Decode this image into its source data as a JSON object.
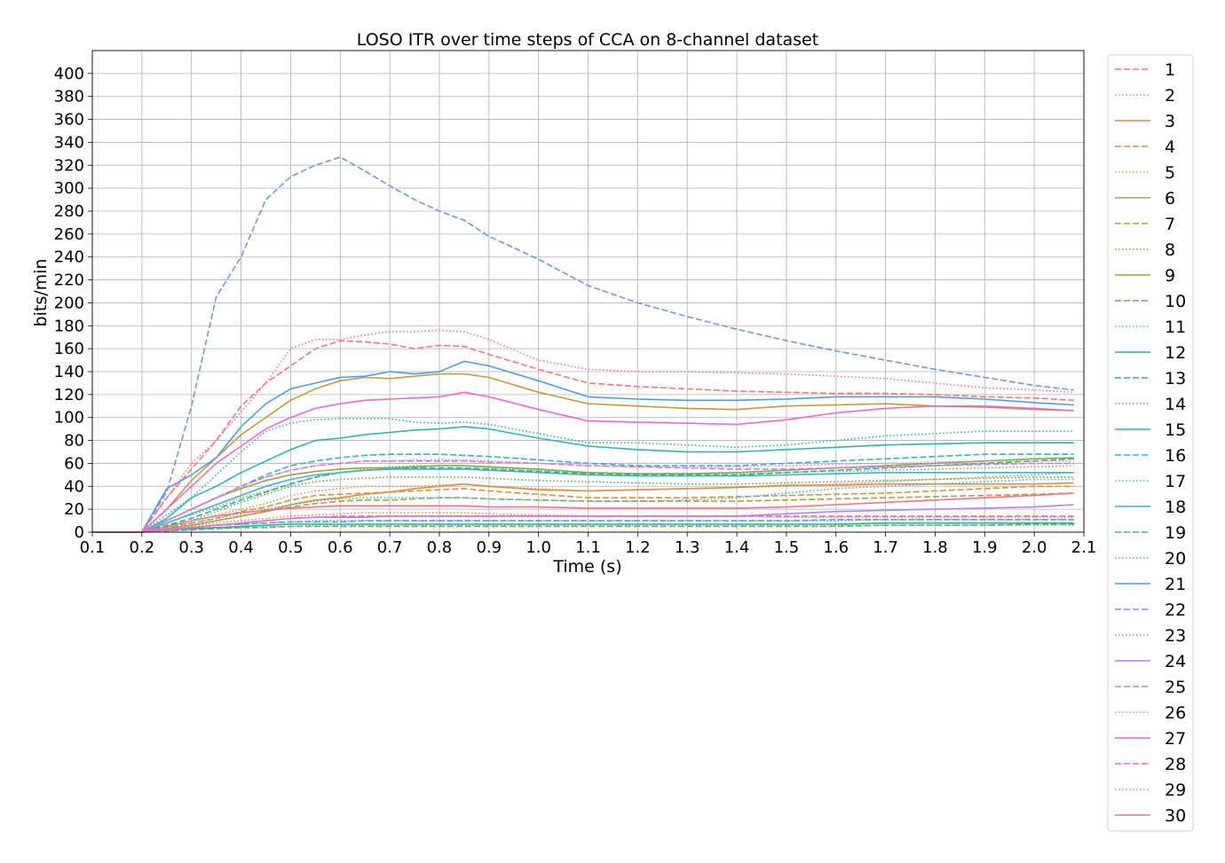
{
  "chart_data": {
    "type": "line",
    "title": "LOSO ITR over time steps of CCA on 8-channel dataset",
    "xlabel": "Time (s)",
    "ylabel": "bits/min",
    "xlim": [
      0.1,
      2.1
    ],
    "ylim": [
      0,
      420
    ],
    "x_ticks": [
      "0.1",
      "0.2",
      "0.3",
      "0.4",
      "0.5",
      "0.6",
      "0.7",
      "0.8",
      "0.9",
      "1.0",
      "1.1",
      "1.2",
      "1.3",
      "1.4",
      "1.5",
      "1.6",
      "1.7",
      "1.8",
      "1.9",
      "2.0",
      "2.1"
    ],
    "y_ticks": [
      "0",
      "20",
      "40",
      "60",
      "80",
      "100",
      "120",
      "140",
      "160",
      "180",
      "200",
      "220",
      "240",
      "260",
      "280",
      "300",
      "320",
      "340",
      "360",
      "380",
      "400"
    ],
    "grid": true,
    "legend_position": "outside-right",
    "x": [
      0.1,
      0.15,
      0.2,
      0.25,
      0.3,
      0.35,
      0.4,
      0.45,
      0.5,
      0.55,
      0.6,
      0.65,
      0.7,
      0.75,
      0.8,
      0.85,
      0.9,
      1.0,
      1.1,
      1.2,
      1.3,
      1.4,
      1.5,
      1.6,
      1.7,
      1.8,
      1.9,
      2.0,
      2.08
    ],
    "series": [
      {
        "name": "1",
        "color": "#f8766d",
        "dash": "dashed",
        "values": [
          0,
          0,
          0,
          30,
          55,
          80,
          110,
          130,
          145,
          160,
          167,
          166,
          164,
          160,
          163,
          162,
          155,
          142,
          130,
          127,
          125,
          123,
          122,
          121,
          121,
          120,
          118,
          117,
          115
        ]
      },
      {
        "name": "2",
        "color": "#f0823a",
        "dash": "dotted",
        "values": [
          0,
          0,
          0,
          2,
          5,
          8,
          10,
          12,
          14,
          15,
          16,
          17,
          17,
          17,
          17,
          17,
          16,
          15,
          14,
          14,
          14,
          14,
          13,
          13,
          13,
          13,
          13,
          13,
          13
        ]
      },
      {
        "name": "3",
        "color": "#e58a3e",
        "dash": "solid",
        "values": [
          0,
          0,
          0,
          3,
          6,
          10,
          14,
          18,
          24,
          28,
          30,
          33,
          35,
          38,
          40,
          42,
          40,
          37,
          36,
          37,
          38,
          39,
          41,
          41,
          42,
          42,
          42,
          42,
          43
        ]
      },
      {
        "name": "4",
        "color": "#d89140",
        "dash": "dashed",
        "values": [
          0,
          0,
          0,
          4,
          8,
          12,
          18,
          22,
          28,
          32,
          33,
          34,
          35,
          36,
          37,
          38,
          36,
          33,
          30,
          30,
          30,
          31,
          32,
          33,
          34,
          36,
          38,
          40,
          40
        ]
      },
      {
        "name": "5",
        "color": "#cc973f",
        "dash": "dotted",
        "values": [
          0,
          0,
          0,
          5,
          10,
          15,
          20,
          25,
          32,
          36,
          38,
          40,
          40,
          40,
          41,
          42,
          40,
          38,
          36,
          37,
          38,
          39,
          40,
          42,
          44,
          46,
          48,
          50,
          52
        ]
      },
      {
        "name": "6",
        "color": "#bd9d3c",
        "dash": "solid",
        "values": [
          0,
          0,
          0,
          20,
          45,
          65,
          85,
          100,
          115,
          125,
          132,
          135,
          134,
          136,
          138,
          138,
          135,
          122,
          112,
          110,
          108,
          107,
          110,
          111,
          112,
          110,
          109,
          107,
          106
        ]
      },
      {
        "name": "7",
        "color": "#aba23a",
        "dash": "dashed",
        "values": [
          0,
          0,
          0,
          3,
          6,
          10,
          14,
          18,
          22,
          25,
          27,
          28,
          28,
          29,
          30,
          30,
          29,
          28,
          27,
          27,
          27,
          27,
          28,
          29,
          30,
          31,
          32,
          33,
          34
        ]
      },
      {
        "name": "8",
        "color": "#99a83a",
        "dash": "dotted",
        "values": [
          0,
          0,
          0,
          8,
          15,
          22,
          30,
          36,
          42,
          48,
          52,
          55,
          57,
          58,
          58,
          58,
          56,
          54,
          52,
          51,
          51,
          51,
          52,
          53,
          54,
          55,
          56,
          57,
          58
        ]
      },
      {
        "name": "9",
        "color": "#84ae3c",
        "dash": "solid",
        "values": [
          0,
          0,
          0,
          10,
          20,
          30,
          38,
          45,
          50,
          53,
          55,
          56,
          56,
          57,
          58,
          58,
          57,
          55,
          52,
          51,
          51,
          52,
          54,
          56,
          58,
          60,
          62,
          64,
          65
        ]
      },
      {
        "name": "10",
        "color": "#5cb44f",
        "dash": "dashed",
        "values": [
          0,
          0,
          0,
          1,
          2,
          3,
          4,
          4,
          5,
          5,
          5,
          5,
          5,
          5,
          5,
          5,
          5,
          5,
          5,
          5,
          5,
          5,
          5,
          5,
          6,
          6,
          6,
          7,
          7
        ]
      },
      {
        "name": "11",
        "color": "#39b65c",
        "dash": "dotted",
        "values": [
          0,
          0,
          0,
          5,
          10,
          18,
          26,
          33,
          40,
          44,
          46,
          47,
          48,
          48,
          48,
          48,
          47,
          45,
          44,
          43,
          42,
          42,
          43,
          44,
          45,
          46,
          47,
          48,
          48
        ]
      },
      {
        "name": "12",
        "color": "#32b27a",
        "dash": "solid",
        "values": [
          0,
          0,
          0,
          2,
          3,
          4,
          5,
          6,
          7,
          7,
          7,
          7,
          7,
          7,
          7,
          7,
          7,
          7,
          7,
          7,
          7,
          7,
          7,
          7,
          8,
          8,
          8,
          8,
          8
        ]
      },
      {
        "name": "13",
        "color": "#30b08f",
        "dash": "dashed",
        "values": [
          0,
          0,
          0,
          6,
          12,
          20,
          28,
          35,
          42,
          48,
          52,
          54,
          55,
          56,
          56,
          56,
          55,
          53,
          51,
          50,
          50,
          50,
          52,
          54,
          56,
          58,
          60,
          62,
          64
        ]
      },
      {
        "name": "14",
        "color": "#2eb2a2",
        "dash": "dotted",
        "values": [
          0,
          0,
          0,
          15,
          30,
          50,
          70,
          88,
          95,
          98,
          99,
          99,
          99,
          96,
          95,
          96,
          94,
          86,
          78,
          78,
          76,
          74,
          76,
          80,
          84,
          86,
          88,
          88,
          88
        ]
      },
      {
        "name": "15",
        "color": "#2fb3b2",
        "dash": "solid",
        "values": [
          0,
          0,
          0,
          12,
          30,
          40,
          52,
          62,
          72,
          80,
          82,
          85,
          87,
          89,
          90,
          92,
          90,
          82,
          75,
          72,
          70,
          70,
          72,
          74,
          76,
          77,
          78,
          78,
          78
        ]
      },
      {
        "name": "16",
        "color": "#31b4c2",
        "dash": "dashed",
        "values": [
          0,
          0,
          0,
          10,
          20,
          30,
          40,
          50,
          58,
          62,
          65,
          67,
          68,
          68,
          68,
          67,
          66,
          63,
          60,
          58,
          58,
          58,
          60,
          62,
          64,
          66,
          68,
          68,
          68
        ]
      },
      {
        "name": "17",
        "color": "#3ab3d2",
        "dash": "dotted",
        "values": [
          0,
          0,
          0,
          4,
          8,
          12,
          16,
          20,
          24,
          27,
          29,
          30,
          30,
          30,
          30,
          30,
          29,
          28,
          27,
          27,
          28,
          30,
          34,
          38,
          40,
          42,
          44,
          46,
          46
        ]
      },
      {
        "name": "18",
        "color": "#3fb0dc",
        "dash": "solid",
        "values": [
          0,
          0,
          0,
          8,
          16,
          24,
          32,
          40,
          46,
          50,
          52,
          54,
          55,
          55,
          55,
          55,
          54,
          52,
          50,
          49,
          49,
          49,
          50,
          51,
          52,
          52,
          52,
          52,
          52
        ]
      },
      {
        "name": "19",
        "color": "#40a9e4",
        "dash": "dashed",
        "values": [
          0,
          0,
          0,
          2,
          4,
          6,
          7,
          8,
          9,
          9,
          9,
          10,
          10,
          10,
          10,
          10,
          10,
          10,
          10,
          10,
          10,
          10,
          10,
          11,
          11,
          11,
          11,
          11,
          11
        ]
      },
      {
        "name": "20",
        "color": "#44a3ea",
        "dash": "dotted",
        "values": [
          0,
          0,
          0,
          2,
          4,
          6,
          7,
          8,
          9,
          10,
          10,
          10,
          10,
          10,
          10,
          10,
          10,
          10,
          10,
          10,
          10,
          10,
          10,
          10,
          11,
          11,
          11,
          11,
          11
        ]
      },
      {
        "name": "21",
        "color": "#4a9ded",
        "dash": "solid",
        "values": [
          0,
          0,
          0,
          38,
          50,
          65,
          92,
          112,
          125,
          130,
          135,
          136,
          140,
          138,
          140,
          149,
          145,
          132,
          118,
          116,
          115,
          115,
          116,
          118,
          118,
          118,
          116,
          113,
          111
        ]
      },
      {
        "name": "22",
        "color": "#6f94ee",
        "dash": "dashed",
        "values": [
          0,
          0,
          0,
          35,
          110,
          205,
          240,
          290,
          310,
          320,
          327,
          315,
          302,
          290,
          280,
          272,
          258,
          238,
          215,
          200,
          188,
          177,
          167,
          158,
          150,
          142,
          135,
          128,
          124
        ]
      },
      {
        "name": "23",
        "color": "#8d8cf0",
        "dash": "dotted",
        "values": [
          0,
          0,
          0,
          1,
          2,
          3,
          4,
          5,
          5,
          6,
          6,
          6,
          6,
          6,
          6,
          6,
          6,
          6,
          6,
          6,
          6,
          6,
          6,
          6,
          6,
          6,
          6,
          6,
          6
        ]
      },
      {
        "name": "24",
        "color": "#b381f0",
        "dash": "solid",
        "values": [
          0,
          0,
          0,
          2,
          4,
          6,
          8,
          10,
          12,
          13,
          13,
          13,
          14,
          14,
          14,
          14,
          14,
          14,
          14,
          14,
          14,
          14,
          16,
          18,
          19,
          20,
          21,
          22,
          24
        ]
      },
      {
        "name": "25",
        "color": "#cc7cec",
        "dash": "dashed",
        "values": [
          0,
          0,
          0,
          10,
          20,
          30,
          40,
          48,
          54,
          58,
          60,
          62,
          62,
          62,
          62,
          62,
          61,
          60,
          58,
          57,
          56,
          55,
          55,
          56,
          57,
          58,
          59,
          60,
          60
        ]
      },
      {
        "name": "26",
        "color": "#e173e2",
        "dash": "dotted",
        "values": [
          0,
          0,
          0,
          10,
          20,
          30,
          40,
          48,
          54,
          58,
          60,
          62,
          62,
          63,
          63,
          63,
          62,
          60,
          58,
          57,
          57,
          57,
          58,
          59,
          60,
          61,
          62,
          62,
          62
        ]
      },
      {
        "name": "27",
        "color": "#f066d4",
        "dash": "solid",
        "values": [
          0,
          0,
          0,
          20,
          40,
          60,
          75,
          90,
          100,
          108,
          112,
          115,
          116,
          117,
          118,
          122,
          118,
          107,
          97,
          96,
          95,
          94,
          98,
          104,
          108,
          110,
          110,
          108,
          106
        ]
      },
      {
        "name": "28",
        "color": "#f767bd",
        "dash": "dashed",
        "values": [
          0,
          0,
          0,
          2,
          4,
          6,
          8,
          10,
          12,
          13,
          14,
          14,
          14,
          14,
          14,
          14,
          14,
          14,
          14,
          14,
          14,
          14,
          14,
          14,
          14,
          14,
          14,
          14,
          14
        ]
      },
      {
        "name": "29",
        "color": "#fa6b9e",
        "dash": "dotted",
        "values": [
          0,
          0,
          0,
          30,
          60,
          80,
          105,
          130,
          160,
          168,
          168,
          172,
          175,
          175,
          176,
          175,
          168,
          150,
          142,
          140,
          140,
          139,
          138,
          136,
          134,
          130,
          126,
          124,
          122
        ]
      },
      {
        "name": "30",
        "color": "#f8708a",
        "dash": "solid",
        "values": [
          0,
          0,
          0,
          5,
          10,
          14,
          17,
          19,
          21,
          22,
          23,
          23,
          23,
          23,
          23,
          23,
          22,
          22,
          21,
          21,
          21,
          21,
          22,
          24,
          26,
          28,
          30,
          32,
          34
        ]
      }
    ]
  }
}
